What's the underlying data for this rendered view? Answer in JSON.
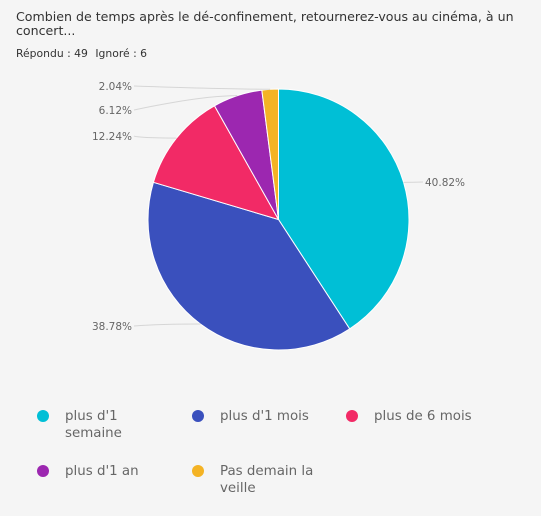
{
  "header": {
    "title": "Combien de temps après le dé-confinement, retournerez-vous au cinéma, à un concert...",
    "answered": "Répondu : 49",
    "skipped": "Ignoré : 6"
  },
  "chart_data": {
    "type": "pie",
    "title": "Combien de temps après le dé-confinement, retournerez-vous au cinéma, à un concert...",
    "categories": [
      "plus d'1 semaine",
      "plus d'1 mois",
      "plus de 6 mois",
      "plus d'1 an",
      "Pas demain la veille"
    ],
    "values": [
      40.82,
      38.78,
      12.24,
      6.12,
      2.04
    ],
    "value_labels": [
      "40.82%",
      "38.78%",
      "12.24%",
      "6.12%",
      "2.04%"
    ],
    "colors": [
      "#00bfd6",
      "#3a50bd",
      "#f22a66",
      "#9c27b0",
      "#f4b324"
    ],
    "legend_position": "bottom",
    "unit": "%"
  },
  "legend": {
    "items": [
      {
        "label": "plus d'1 semaine",
        "color": "#00bfd6"
      },
      {
        "label": "plus d'1 mois",
        "color": "#3a50bd"
      },
      {
        "label": "plus de 6 mois",
        "color": "#f22a66"
      },
      {
        "label": "plus d'1 an",
        "color": "#9c27b0"
      },
      {
        "label": "Pas demain la veille",
        "color": "#f4b324"
      }
    ]
  }
}
